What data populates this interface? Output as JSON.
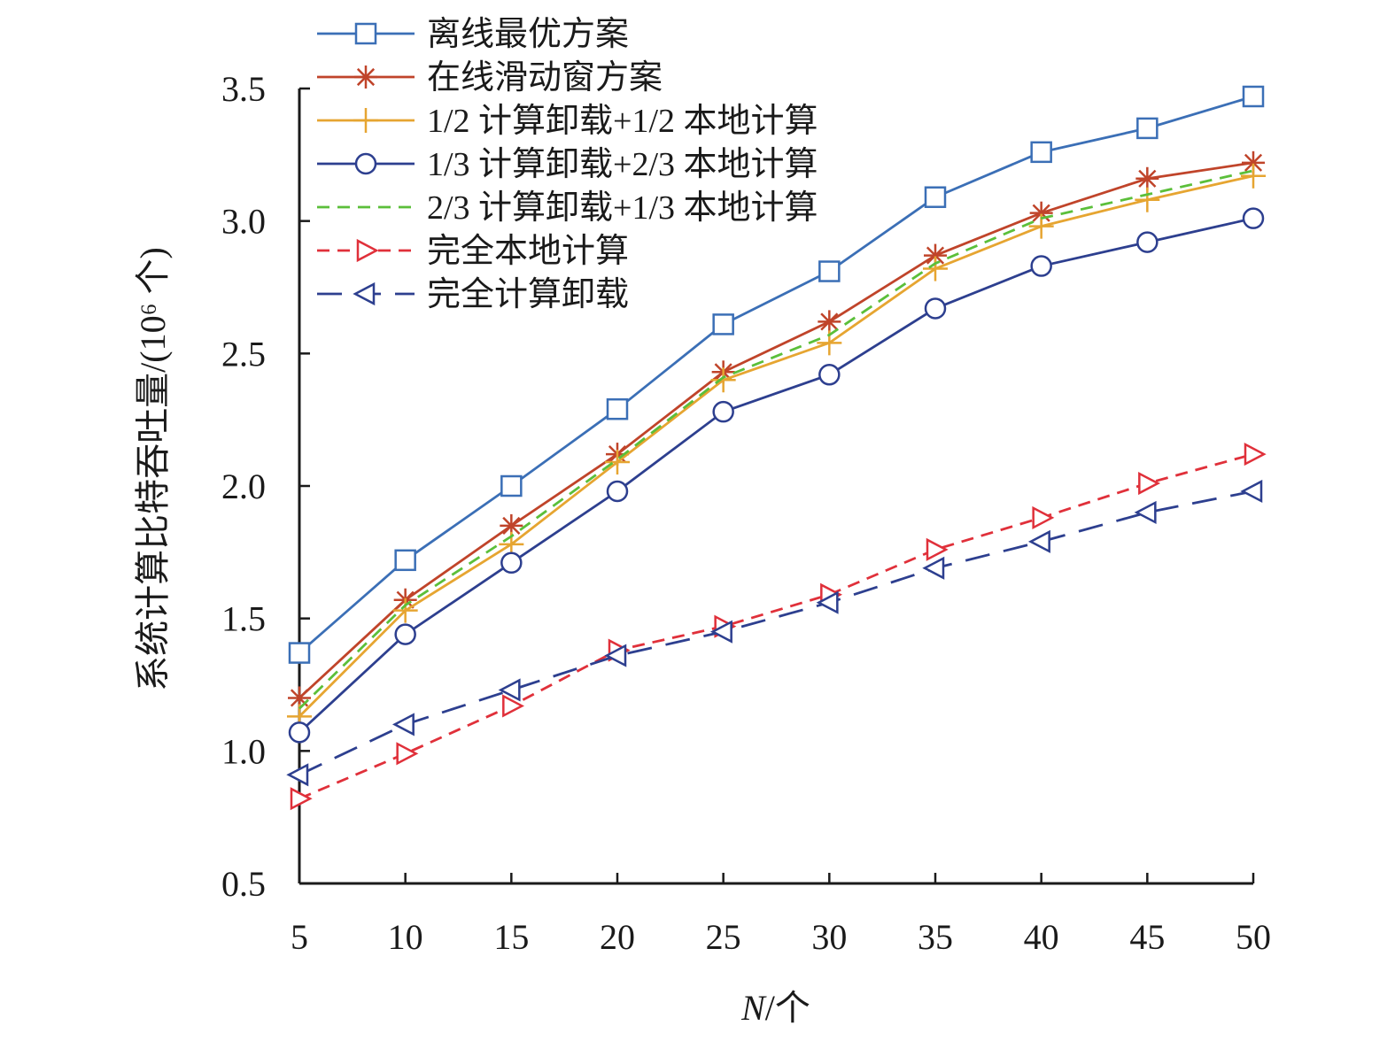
{
  "chart_data": {
    "type": "line",
    "title": "",
    "xlabel": "N/个",
    "xlabel_italic_part": "N",
    "xlabel_rest": "/个",
    "ylabel": "系统计算比特吞吐量/(10⁶ 个)",
    "x": [
      5,
      10,
      15,
      20,
      25,
      30,
      35,
      40,
      45,
      50
    ],
    "xticks": [
      "5",
      "10",
      "15",
      "20",
      "25",
      "30",
      "35",
      "40",
      "45",
      "50"
    ],
    "ylim": [
      0.5,
      3.5
    ],
    "yticks": [
      "0.5",
      "1.0",
      "1.5",
      "2.0",
      "2.5",
      "3.0",
      "3.5"
    ],
    "ytick_values": [
      0.5,
      1.0,
      1.5,
      2.0,
      2.5,
      3.0,
      3.5
    ],
    "grid": false,
    "legend_position": "top-left",
    "series": [
      {
        "name": "离线最优方案",
        "color": "#3b6fb6",
        "marker": "square",
        "dash": "solid",
        "values": [
          1.37,
          1.72,
          2.0,
          2.29,
          2.61,
          2.81,
          3.09,
          3.26,
          3.35,
          3.47
        ]
      },
      {
        "name": "在线滑动窗方案",
        "color": "#c0442a",
        "marker": "asterisk",
        "dash": "solid",
        "values": [
          1.2,
          1.57,
          1.85,
          2.12,
          2.43,
          2.62,
          2.87,
          3.03,
          3.16,
          3.22
        ]
      },
      {
        "name": "1/2 计算卸载+1/2 本地计算",
        "color": "#e6a531",
        "marker": "plus",
        "dash": "solid",
        "values": [
          1.13,
          1.53,
          1.78,
          2.09,
          2.4,
          2.54,
          2.82,
          2.98,
          3.08,
          3.17
        ]
      },
      {
        "name": "1/3 计算卸载+2/3 本地计算",
        "color": "#2d3f8f",
        "marker": "circle",
        "dash": "solid",
        "values": [
          1.07,
          1.44,
          1.71,
          1.98,
          2.28,
          2.42,
          2.67,
          2.83,
          2.92,
          3.01
        ]
      },
      {
        "name": "2/3 计算卸载+1/3 本地计算",
        "color": "#5bbf3a",
        "marker": "none",
        "dash": "dashed",
        "values": [
          1.16,
          1.55,
          1.81,
          2.1,
          2.41,
          2.57,
          2.84,
          3.01,
          3.1,
          3.19
        ]
      },
      {
        "name": "完全本地计算",
        "color": "#e0303a",
        "marker": "triangle-right",
        "dash": "dashed",
        "values": [
          0.82,
          0.99,
          1.17,
          1.38,
          1.47,
          1.59,
          1.76,
          1.88,
          2.01,
          2.12
        ]
      },
      {
        "name": "完全计算卸载",
        "color": "#2d3f8f",
        "marker": "triangle-left",
        "dash": "longdash",
        "values": [
          0.91,
          1.1,
          1.23,
          1.36,
          1.45,
          1.56,
          1.69,
          1.79,
          1.9,
          1.98
        ]
      }
    ]
  }
}
